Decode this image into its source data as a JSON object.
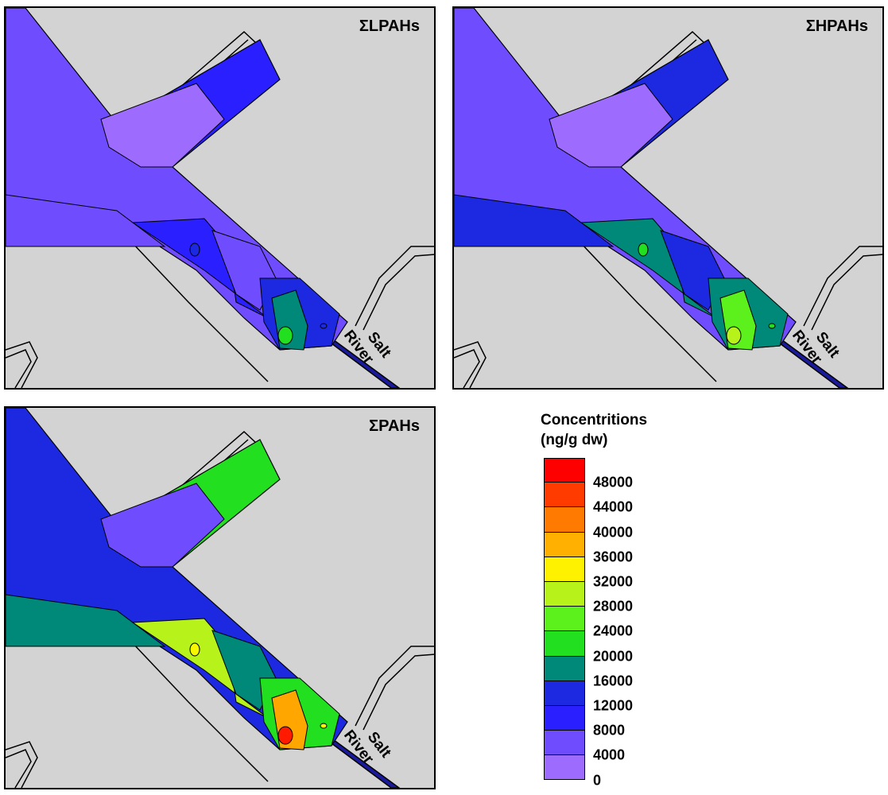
{
  "panels": [
    {
      "title": "ΣLPAHs",
      "river_label": [
        "Salt",
        "River"
      ],
      "zones": {
        "wideChannel": "#6f4dff",
        "bayInner": "#9e6bff",
        "bayOuter": "#2a1fff",
        "leftDown": "#6f4dff",
        "mainUpper": "#2a1fff",
        "mainMid": "#6f4dff",
        "mainLower": "#1c29e0",
        "hotspot": "#008878",
        "core": "#22e020",
        "dot": "#1c29e0"
      }
    },
    {
      "title": "ΣHPAHs",
      "river_label": [
        "Salt",
        "River"
      ],
      "zones": {
        "wideChannel": "#6f4dff",
        "bayInner": "#9e6bff",
        "bayOuter": "#1c29e0",
        "leftDown": "#1c29e0",
        "mainUpper": "#008878",
        "mainMid": "#1c29e0",
        "mainLower": "#008878",
        "hotspot": "#5cf01c",
        "core": "#b7f21a",
        "dot": "#22e020"
      }
    },
    {
      "title": "ΣPAHs",
      "river_label": [
        "Salt",
        "River"
      ],
      "zones": {
        "wideChannel": "#1c29e0",
        "bayInner": "#6f4dff",
        "bayOuter": "#22e020",
        "leftDown": "#008878",
        "mainUpper": "#b7f21a",
        "mainMid": "#008878",
        "mainLower": "#22e020",
        "hotspot": "#ffa600",
        "core": "#ff1a00",
        "dot": "#f7f700"
      }
    }
  ],
  "legend": {
    "title_line1": "Concentritions",
    "title_line2": "(ng/g dw)",
    "colors": [
      "#ff0000",
      "#ff3b00",
      "#ff7a00",
      "#ffb000",
      "#fff200",
      "#b7f21a",
      "#5cf01c",
      "#22e020",
      "#008878",
      "#1c29e0",
      "#2a1fff",
      "#6f4dff",
      "#9e6bff"
    ],
    "ticks": [
      "48000",
      "44000",
      "40000",
      "36000",
      "32000",
      "28000",
      "24000",
      "20000",
      "16000",
      "12000",
      "8000",
      "4000",
      "0"
    ]
  },
  "map_colors": {
    "land": "#d3d3d3",
    "river": "#1a1a9c"
  }
}
